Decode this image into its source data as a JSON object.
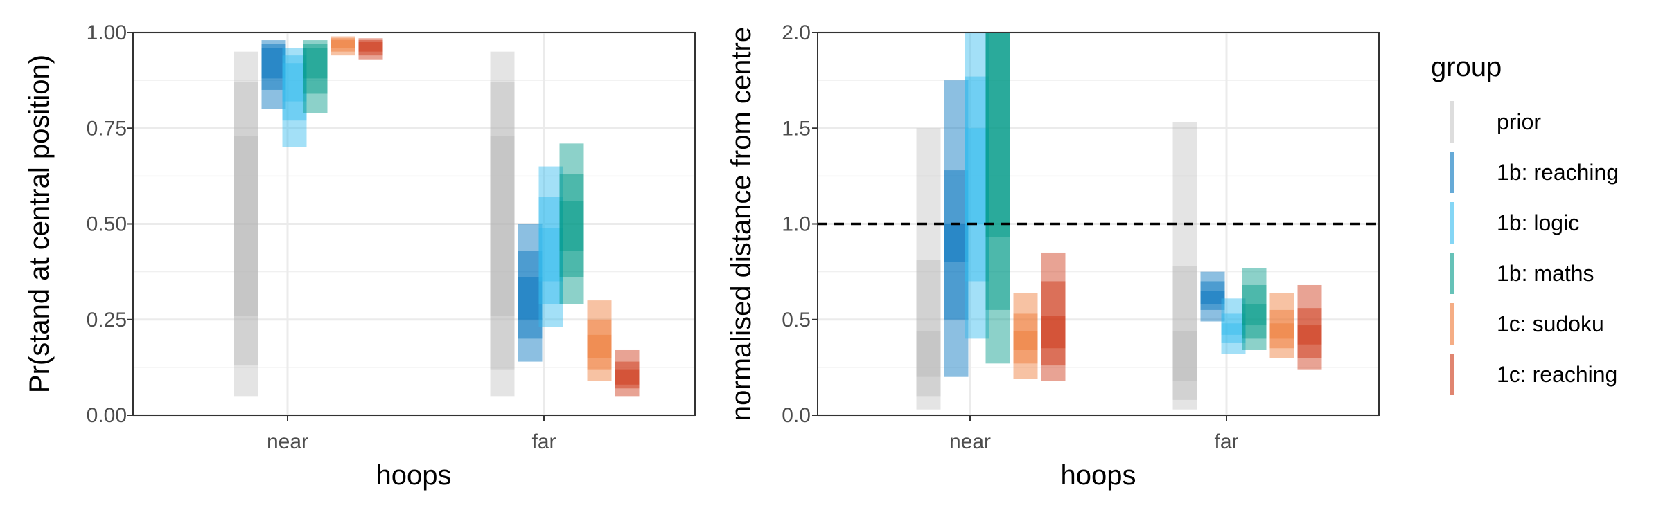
{
  "chart_data": [
    {
      "type": "interval",
      "ylabel": "Pr(stand at central position)",
      "xlabel": "hoops",
      "categories": [
        "near",
        "far"
      ],
      "ylim": [
        0,
        1
      ],
      "yticks": [
        0,
        0.25,
        0.5,
        0.75,
        1
      ],
      "ytick_labels": [
        "0.00",
        "0.25",
        "0.50",
        "0.75",
        "1.00"
      ],
      "grid": true,
      "series": [
        {
          "group": 0,
          "category": "near",
          "intervals": [
            [
              0.05,
              0.95
            ],
            [
              0.13,
              0.87
            ],
            [
              0.26,
              0.73
            ]
          ]
        },
        {
          "group": 1,
          "category": "near",
          "intervals": [
            [
              0.8,
              0.98
            ],
            [
              0.85,
              0.97
            ],
            [
              0.88,
              0.96
            ]
          ]
        },
        {
          "group": 2,
          "category": "near",
          "intervals": [
            [
              0.7,
              0.96
            ],
            [
              0.77,
              0.94
            ],
            [
              0.82,
              0.92
            ]
          ]
        },
        {
          "group": 3,
          "category": "near",
          "intervals": [
            [
              0.79,
              0.98
            ],
            [
              0.84,
              0.97
            ],
            [
              0.88,
              0.96
            ]
          ]
        },
        {
          "group": 4,
          "category": "near",
          "intervals": [
            [
              0.94,
              0.99
            ],
            [
              0.95,
              0.985
            ],
            [
              0.96,
              0.98
            ]
          ]
        },
        {
          "group": 5,
          "category": "near",
          "intervals": [
            [
              0.93,
              0.985
            ],
            [
              0.94,
              0.98
            ],
            [
              0.95,
              0.975
            ]
          ]
        },
        {
          "group": 0,
          "category": "far",
          "intervals": [
            [
              0.05,
              0.95
            ],
            [
              0.12,
              0.87
            ],
            [
              0.26,
              0.73
            ]
          ]
        },
        {
          "group": 1,
          "category": "far",
          "intervals": [
            [
              0.14,
              0.5
            ],
            [
              0.2,
              0.43
            ],
            [
              0.25,
              0.36
            ]
          ]
        },
        {
          "group": 2,
          "category": "far",
          "intervals": [
            [
              0.23,
              0.65
            ],
            [
              0.29,
              0.57
            ],
            [
              0.35,
              0.49
            ]
          ]
        },
        {
          "group": 3,
          "category": "far",
          "intervals": [
            [
              0.29,
              0.71
            ],
            [
              0.36,
              0.63
            ],
            [
              0.43,
              0.56
            ]
          ]
        },
        {
          "group": 4,
          "category": "far",
          "intervals": [
            [
              0.09,
              0.3
            ],
            [
              0.12,
              0.25
            ],
            [
              0.15,
              0.21
            ]
          ]
        },
        {
          "group": 5,
          "category": "far",
          "intervals": [
            [
              0.05,
              0.17
            ],
            [
              0.07,
              0.14
            ],
            [
              0.08,
              0.12
            ]
          ]
        }
      ]
    },
    {
      "type": "interval",
      "ylabel": "normalised distance from centre",
      "xlabel": "hoops",
      "categories": [
        "near",
        "far"
      ],
      "ylim": [
        0,
        2
      ],
      "yticks": [
        0,
        0.5,
        1,
        1.5,
        2
      ],
      "ytick_labels": [
        "0.0",
        "0.5",
        "1.0",
        "1.5",
        "2.0"
      ],
      "reference_line": {
        "y": 1.0,
        "style": "dashed"
      },
      "grid": true,
      "series": [
        {
          "group": 0,
          "category": "near",
          "intervals": [
            [
              0.03,
              1.5
            ],
            [
              0.1,
              0.81
            ],
            [
              0.2,
              0.44
            ]
          ]
        },
        {
          "group": 1,
          "category": "near",
          "intervals": [
            [
              0.2,
              1.75
            ],
            [
              0.5,
              1.28
            ],
            [
              0.8,
              1.0
            ]
          ]
        },
        {
          "group": 2,
          "category": "near",
          "intervals": [
            [
              0.4,
              2.0
            ],
            [
              0.7,
              1.77
            ],
            [
              1.0,
              1.5
            ]
          ]
        },
        {
          "group": 3,
          "category": "near",
          "intervals": [
            [
              0.27,
              2.0
            ],
            [
              0.55,
              2.0
            ],
            [
              0.93,
              2.0
            ]
          ]
        },
        {
          "group": 4,
          "category": "near",
          "intervals": [
            [
              0.19,
              0.64
            ],
            [
              0.27,
              0.53
            ],
            [
              0.34,
              0.44
            ]
          ]
        },
        {
          "group": 5,
          "category": "near",
          "intervals": [
            [
              0.18,
              0.85
            ],
            [
              0.26,
              0.7
            ],
            [
              0.35,
              0.52
            ]
          ]
        },
        {
          "group": 0,
          "category": "far",
          "intervals": [
            [
              0.03,
              1.53
            ],
            [
              0.08,
              0.78
            ],
            [
              0.18,
              0.44
            ]
          ]
        },
        {
          "group": 1,
          "category": "far",
          "intervals": [
            [
              0.49,
              0.75
            ],
            [
              0.55,
              0.7
            ],
            [
              0.58,
              0.65
            ]
          ]
        },
        {
          "group": 2,
          "category": "far",
          "intervals": [
            [
              0.32,
              0.61
            ],
            [
              0.38,
              0.53
            ],
            [
              0.42,
              0.48
            ]
          ]
        },
        {
          "group": 3,
          "category": "far",
          "intervals": [
            [
              0.34,
              0.77
            ],
            [
              0.4,
              0.68
            ],
            [
              0.47,
              0.58
            ]
          ]
        },
        {
          "group": 4,
          "category": "far",
          "intervals": [
            [
              0.3,
              0.64
            ],
            [
              0.35,
              0.55
            ],
            [
              0.4,
              0.48
            ]
          ]
        },
        {
          "group": 5,
          "category": "far",
          "intervals": [
            [
              0.24,
              0.68
            ],
            [
              0.3,
              0.56
            ],
            [
              0.37,
              0.47
            ]
          ]
        }
      ]
    }
  ],
  "legend": {
    "title": "group",
    "position": "right",
    "items": [
      {
        "label": "prior",
        "color": "#b3b3b3"
      },
      {
        "label": "1b: reaching",
        "color": "#0072bd"
      },
      {
        "label": "1b: logic",
        "color": "#33bbee"
      },
      {
        "label": "1b: maths",
        "color": "#009988"
      },
      {
        "label": "1c: sudoku",
        "color": "#ee7733"
      },
      {
        "label": "1c: reaching",
        "color": "#cc3311"
      }
    ]
  }
}
